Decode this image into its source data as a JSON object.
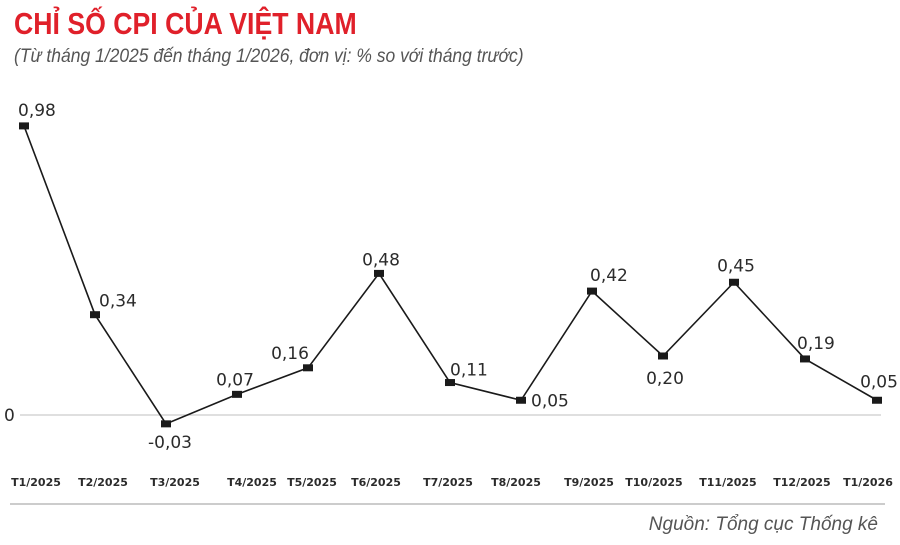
{
  "header": {
    "title": "CHỈ SỐ CPI CỦA VIỆT NAM",
    "subtitle": "(Từ tháng 1/2025 đến tháng 1/2026, đơn vị: % so với tháng trước)"
  },
  "footer": {
    "source": "Nguồn: Tổng cục Thống kê"
  },
  "colors": {
    "title": "#e0202a",
    "line": "#1a1a1a",
    "highlight_label": "#e0202a",
    "muted_label": "#777777",
    "zero_line": "#cccccc"
  },
  "chart_data": {
    "type": "line",
    "title": "CHỈ SỐ CPI CỦA VIỆT NAM",
    "subtitle": "(Từ tháng 1/2025 đến tháng 1/2026, đơn vị: % so với tháng trước)",
    "xlabel": "",
    "ylabel": "% so với tháng trước",
    "categories": [
      "T1/2025",
      "T2/2025",
      "T3/2025",
      "T4/2025",
      "T5/2025",
      "T6/2025",
      "T7/2025",
      "T8/2025",
      "T9/2025",
      "T10/2025",
      "T11/2025",
      "T12/2025",
      "T1/2026"
    ],
    "values": [
      0.98,
      0.34,
      -0.03,
      0.07,
      0.16,
      0.48,
      0.11,
      0.05,
      0.42,
      0.2,
      0.45,
      0.19,
      0.05
    ],
    "value_labels": [
      "0,98",
      "0,34",
      "-0,03",
      "0,07",
      "0,16",
      "0,48",
      "0,11",
      "0,05",
      "0,42",
      "0,20",
      "0,45",
      "0,19",
      "0,05"
    ],
    "y_tick_labels": [
      "0"
    ],
    "grid": false,
    "legend": null,
    "annotations": [
      "Nguồn: Tổng cục Thống kê"
    ]
  }
}
